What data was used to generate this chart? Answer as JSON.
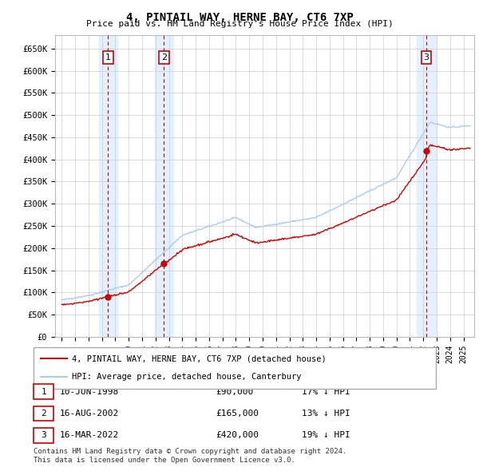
{
  "title": "4, PINTAIL WAY, HERNE BAY, CT6 7XP",
  "subtitle": "Price paid vs. HM Land Registry's House Price Index (HPI)",
  "ylabel_ticks": [
    "£0",
    "£50K",
    "£100K",
    "£150K",
    "£200K",
    "£250K",
    "£300K",
    "£350K",
    "£400K",
    "£450K",
    "£500K",
    "£550K",
    "£600K",
    "£650K"
  ],
  "ylim": [
    0,
    680000
  ],
  "ytick_vals": [
    0,
    50000,
    100000,
    150000,
    200000,
    250000,
    300000,
    350000,
    400000,
    450000,
    500000,
    550000,
    600000,
    650000
  ],
  "xlim_start": 1994.5,
  "xlim_end": 2025.8,
  "transactions": [
    {
      "num": 1,
      "date_str": "10-JUN-1998",
      "price": 90000,
      "pct": "17%",
      "x_year": 1998.45
    },
    {
      "num": 2,
      "date_str": "16-AUG-2002",
      "price": 165000,
      "pct": "13%",
      "x_year": 2002.63
    },
    {
      "num": 3,
      "date_str": "16-MAR-2022",
      "price": 420000,
      "pct": "19%",
      "x_year": 2022.21
    }
  ],
  "legend_line1": "4, PINTAIL WAY, HERNE BAY, CT6 7XP (detached house)",
  "legend_line2": "HPI: Average price, detached house, Canterbury",
  "footer1": "Contains HM Land Registry data © Crown copyright and database right 2024.",
  "footer2": "This data is licensed under the Open Government Licence v3.0.",
  "hpi_color": "#aaccee",
  "price_color": "#cc0000",
  "marker_color": "#cc0000",
  "vline_color": "#cc0000",
  "shade_color": "#ddeeff",
  "bg_color": "#ffffff",
  "grid_color": "#cccccc"
}
